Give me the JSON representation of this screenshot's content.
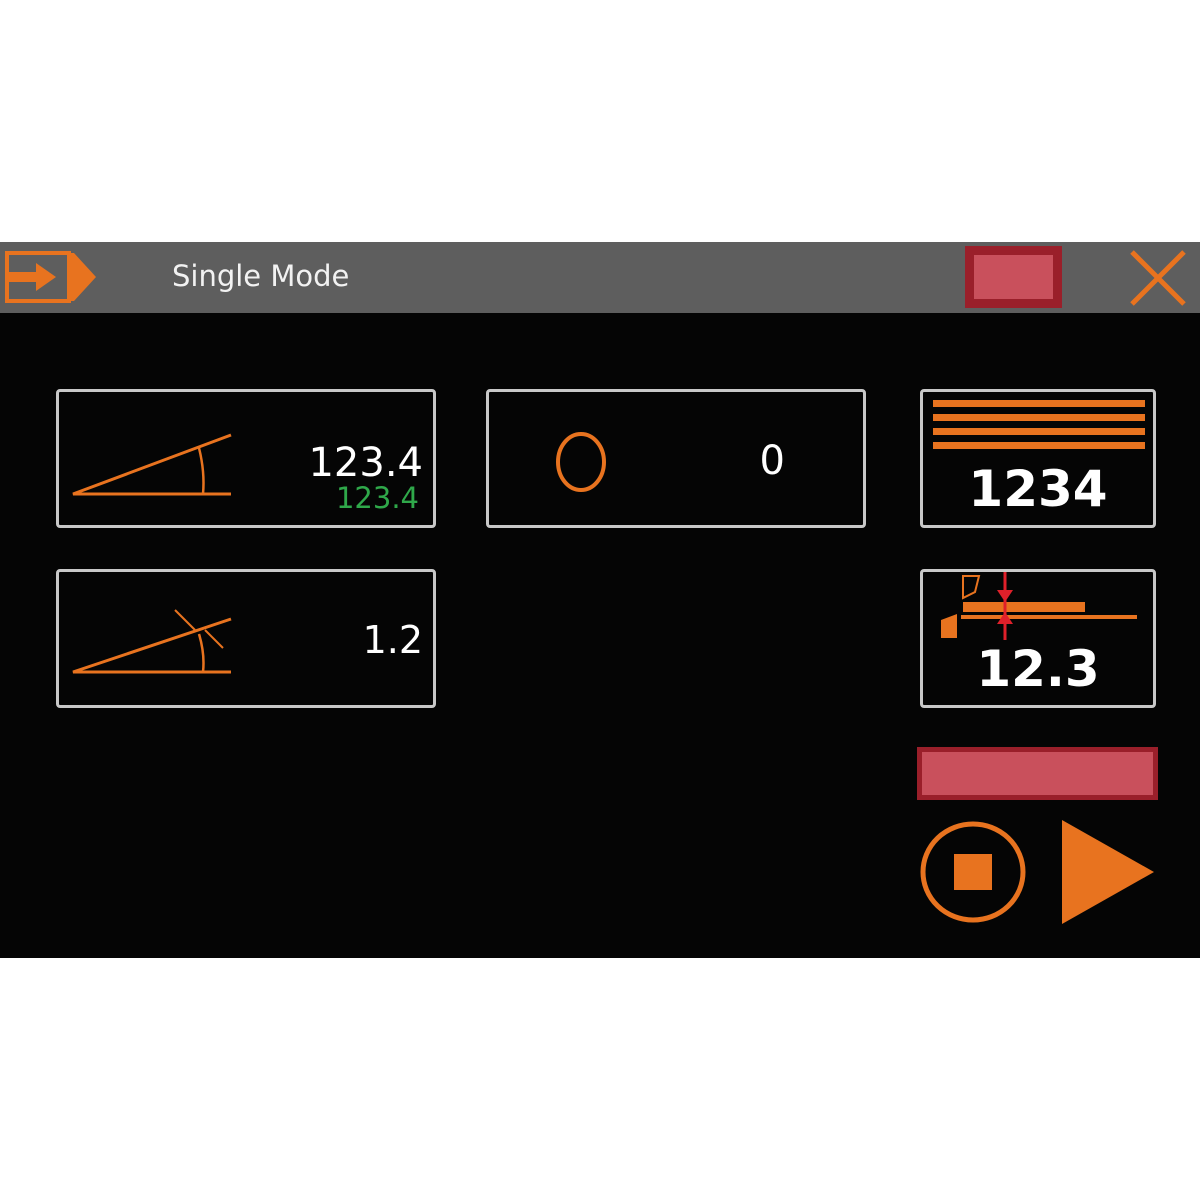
{
  "titlebar": {
    "title": "Single Mode",
    "menu_icon": "exit-arrow-icon",
    "close_icon": "close-icon",
    "status_color": "#c9505c"
  },
  "angle_panel": {
    "icon": "angle-icon",
    "value": "123.4",
    "actual_value": "123.4",
    "actual_color": "#2fa84a"
  },
  "angle_correction_panel": {
    "icon": "angle-correction-icon",
    "value": "1.2"
  },
  "counter_panel": {
    "icon": "circle-icon",
    "value": "0"
  },
  "sheets_panel": {
    "icon": "sheet-stack-icon",
    "value": "1234"
  },
  "thickness_panel": {
    "icon": "sheet-thickness-icon",
    "value": "12.3"
  },
  "accent_color": "#e8731f"
}
